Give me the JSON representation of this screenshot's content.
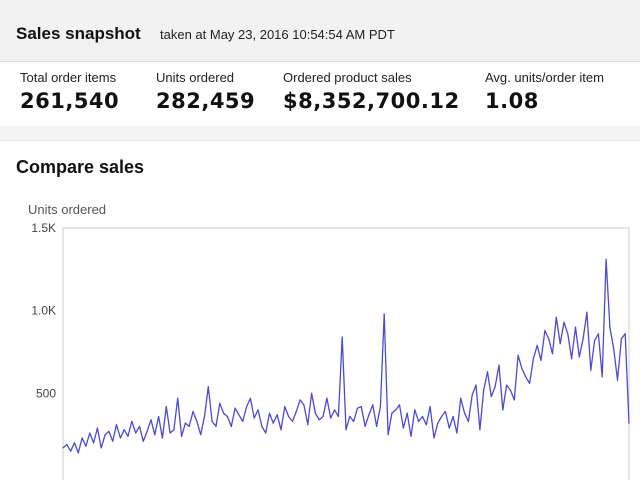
{
  "snapshot": {
    "title": "Sales snapshot",
    "subtitle": "taken at May 23, 2016 10:54:54 AM PDT"
  },
  "metrics": [
    {
      "label": "Total order items",
      "value": "261,540"
    },
    {
      "label": "Units ordered",
      "value": "282,459"
    },
    {
      "label": "Ordered product sales",
      "value": "$8,352,700.12"
    },
    {
      "label": "Avg. units/order item",
      "value": "1.08"
    }
  ],
  "compare": {
    "title": "Compare sales"
  },
  "chart_data": {
    "type": "line",
    "title": "",
    "ylabel": "Units ordered",
    "ylim": [
      0,
      1500
    ],
    "yticks": [
      {
        "value": 1500,
        "label": "1.5K"
      },
      {
        "value": 1000,
        "label": "1.0K"
      },
      {
        "value": 500,
        "label": "500"
      }
    ],
    "grid": false,
    "colors": {
      "line": "#4a4ad6",
      "frame": "#cfcfcf",
      "tick_label": "#444444"
    },
    "series": [
      {
        "values": [
          170,
          190,
          150,
          200,
          140,
          230,
          180,
          260,
          200,
          290,
          170,
          250,
          270,
          210,
          310,
          230,
          280,
          240,
          330,
          260,
          300,
          210,
          270,
          340,
          250,
          360,
          230,
          420,
          260,
          280,
          470,
          240,
          320,
          300,
          390,
          330,
          250,
          360,
          540,
          330,
          300,
          440,
          380,
          360,
          300,
          410,
          370,
          330,
          420,
          470,
          350,
          400,
          300,
          260,
          380,
          320,
          370,
          280,
          420,
          360,
          330,
          390,
          460,
          430,
          310,
          500,
          380,
          340,
          360,
          470,
          350,
          400,
          360,
          840,
          280,
          360,
          330,
          410,
          420,
          300,
          370,
          430,
          300,
          420,
          980,
          250,
          380,
          400,
          430,
          290,
          380,
          240,
          400,
          330,
          360,
          310,
          420,
          230,
          320,
          360,
          390,
          290,
          360,
          260,
          470,
          380,
          330,
          490,
          550,
          280,
          520,
          630,
          480,
          540,
          670,
          400,
          550,
          520,
          460,
          730,
          650,
          600,
          560,
          710,
          790,
          700,
          880,
          830,
          740,
          960,
          800,
          930,
          860,
          710,
          900,
          720,
          830,
          990,
          640,
          820,
          860,
          600,
          1310,
          900,
          770,
          580,
          830,
          860,
          320
        ]
      }
    ]
  }
}
